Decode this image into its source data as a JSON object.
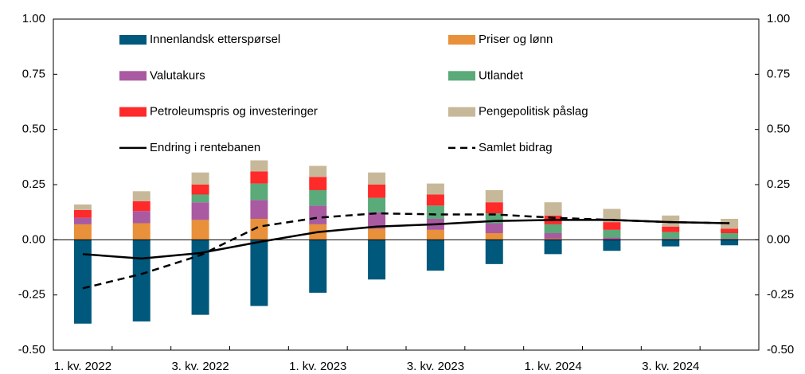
{
  "chart_data": {
    "type": "bar",
    "stacked": true,
    "categories": [
      "1. kv. 2022",
      null,
      "3. kv. 2022",
      null,
      "1. kv. 2023",
      null,
      "3. kv. 2023",
      null,
      "1. kv. 2024",
      null,
      "3. kv. 2024",
      null
    ],
    "series": [
      {
        "name": "Innenlandsk etterspørsel",
        "color": "#00587c",
        "values": [
          -0.38,
          -0.37,
          -0.34,
          -0.3,
          -0.24,
          -0.18,
          -0.14,
          -0.11,
          -0.065,
          -0.05,
          -0.03,
          -0.025
        ]
      },
      {
        "name": "Priser og lønn",
        "color": "#e8913a",
        "values": [
          0.07,
          0.075,
          0.09,
          0.095,
          0.07,
          0.05,
          0.045,
          0.03,
          0.005,
          0,
          0,
          0
        ]
      },
      {
        "name": "Valutakurs",
        "color": "#a95aa1",
        "values": [
          0.03,
          0.055,
          0.08,
          0.085,
          0.085,
          0.075,
          0.05,
          0.045,
          0.025,
          0.01,
          0.005,
          0.005
        ]
      },
      {
        "name": "Utlandet",
        "color": "#5aaa7a",
        "values": [
          0,
          0,
          0.035,
          0.075,
          0.07,
          0.065,
          0.06,
          0.045,
          0.04,
          0.035,
          0.03,
          0.025
        ]
      },
      {
        "name": "Petroleumspris og investeringer",
        "color": "#ff2a2a",
        "values": [
          0.035,
          0.045,
          0.045,
          0.055,
          0.06,
          0.06,
          0.05,
          0.05,
          0.04,
          0.035,
          0.025,
          0.02
        ]
      },
      {
        "name": "Pengepolitisk påslag",
        "color": "#c8b89a",
        "values": [
          0.025,
          0.045,
          0.055,
          0.05,
          0.05,
          0.055,
          0.05,
          0.055,
          0.06,
          0.06,
          0.05,
          0.045
        ]
      },
      {
        "name": "Endring i rentebanen",
        "type": "line",
        "dashed": false,
        "color": "#000000",
        "values": [
          -0.065,
          -0.085,
          -0.06,
          -0.01,
          0.035,
          0.06,
          0.07,
          0.085,
          0.09,
          0.09,
          0.08,
          0.075
        ]
      },
      {
        "name": "Samlet bidrag",
        "type": "line",
        "dashed": true,
        "color": "#000000",
        "values": [
          -0.22,
          -0.155,
          -0.07,
          0.06,
          0.1,
          0.12,
          0.115,
          0.115,
          0.1,
          0.09,
          0.08,
          0.075
        ]
      }
    ],
    "ylim": [
      -0.5,
      1.0
    ],
    "yticks": [
      {
        "value": 1.0,
        "label": "1.00"
      },
      {
        "value": 0.75,
        "label": "0.75"
      },
      {
        "value": 0.5,
        "label": "0.50"
      },
      {
        "value": 0.25,
        "label": "0.25"
      },
      {
        "value": 0,
        "label": "0.00"
      },
      {
        "value": -0.25,
        "label": "-0.25"
      },
      {
        "value": -0.5,
        "label": "-0.50"
      }
    ],
    "y2lim": [
      -0.5,
      1.0
    ],
    "y2ticks": [
      {
        "value": 1.0,
        "label": "1.00"
      },
      {
        "value": 0.75,
        "label": "0.75"
      },
      {
        "value": 0.5,
        "label": "0.50"
      },
      {
        "value": 0.25,
        "label": "0.25"
      },
      {
        "value": 0,
        "label": "0.00"
      },
      {
        "value": -0.25,
        "label": "-0.25"
      },
      {
        "value": -0.5,
        "label": "-0.50"
      }
    ]
  }
}
